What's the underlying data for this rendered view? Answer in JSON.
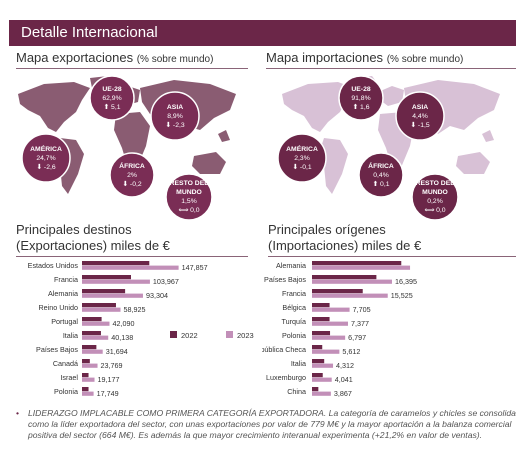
{
  "header": {
    "title": "Detalle Internacional"
  },
  "export_map": {
    "title": "Mapa exportaciones",
    "subtitle": "(% sobre mundo)",
    "bubbles": [
      {
        "region": "UE-28",
        "pct": "62,9%",
        "change": "5,1",
        "dir": "up"
      },
      {
        "region": "ASIA",
        "pct": "8,9%",
        "change": "-2,3",
        "dir": "down"
      },
      {
        "region": "AMÉRICA",
        "pct": "24,7%",
        "change": "-2,6",
        "dir": "down"
      },
      {
        "region": "ÁFRICA",
        "pct": "2%",
        "change": "-0,2",
        "dir": "down"
      },
      {
        "region": "RESTO DEL MUNDO",
        "pct": "1,5%",
        "change": "0,0",
        "dir": "flat"
      }
    ]
  },
  "import_map": {
    "title": "Mapa importaciones",
    "subtitle": "(% sobre mundo)",
    "bubbles": [
      {
        "region": "UE-28",
        "pct": "91,8%",
        "change": "1,6",
        "dir": "up"
      },
      {
        "region": "ASIA",
        "pct": "4,4%",
        "change": "-1,5",
        "dir": "down"
      },
      {
        "region": "AMÉRICA",
        "pct": "2,3%",
        "change": "-0,1",
        "dir": "down"
      },
      {
        "region": "ÁFRICA",
        "pct": "0,4%",
        "change": "0,1",
        "dir": "up"
      },
      {
        "region": "RESTO DEL MUNDO",
        "pct": "0,2%",
        "change": "0,0",
        "dir": "flat"
      }
    ]
  },
  "colors": {
    "header": "#6b2648",
    "export_bubble": "#7a2d55",
    "import_bubble": "#6b2648",
    "bar_2022": "#6b2648",
    "bar_2023": "#c28fb8",
    "export_map_land": "#8a5c72",
    "import_map_land": "#d8c1d6"
  },
  "chart_data": [
    {
      "type": "bar",
      "orientation": "horizontal",
      "title": "Principales destinos",
      "subtitle": "(Exportaciones) miles de €",
      "categories": [
        "Estados Unidos",
        "Francia",
        "Alemania",
        "Reino Unido",
        "Portugal",
        "Italia",
        "Países Bajos",
        "Canadá",
        "Israel",
        "Polonia"
      ],
      "series": [
        {
          "name": "2022",
          "values": [
            103000,
            75000,
            66000,
            52000,
            30000,
            29000,
            22000,
            12000,
            10000,
            10000
          ]
        },
        {
          "name": "2023",
          "values": [
            147857,
            103967,
            93304,
            58925,
            42090,
            40138,
            31694,
            23769,
            19177,
            17749
          ]
        }
      ],
      "value_labels": [
        "147,857",
        "103,967",
        "93,304",
        "58,925",
        "42,090",
        "40,138",
        "31,694",
        "23,769",
        "19,177",
        "17,749"
      ],
      "legend": {
        "labels": [
          "2022",
          "2023"
        ],
        "placement": "right"
      },
      "xlim": [
        0,
        150000
      ]
    },
    {
      "type": "bar",
      "orientation": "horizontal",
      "title": "Principales orígenes",
      "subtitle": "(Importaciones) miles de €",
      "categories": [
        "Alemania",
        "Países Bajos",
        "Francia",
        "Bélgica",
        "Turquía",
        "Polonia",
        "República Checa",
        "Italia",
        "Luxemburgo",
        "China"
      ],
      "series": [
        {
          "name": "2022",
          "values": [
            18300,
            13200,
            10400,
            3600,
            3600,
            3700,
            2100,
            2500,
            2200,
            1300
          ]
        },
        {
          "name": "2023",
          "values": [
            20100,
            16395,
            15525,
            7705,
            7377,
            6797,
            5612,
            4312,
            4041,
            3867
          ]
        }
      ],
      "value_labels": [
        "",
        "16,395",
        "15,525",
        "7,705",
        "7,377",
        "6,797",
        "5,612",
        "4,312",
        "4,041",
        "3,867"
      ],
      "xlim": [
        0,
        20500
      ]
    }
  ],
  "footnote": {
    "bullet": "•",
    "text": "LIDERAZGO IMPLACABLE COMO PRIMERA CATEGORÍA EXPORTADORA. La categoría de caramelos y chicles se consolida como la líder exportadora del sector, con unas exportaciones por valor de 779 M€ y la mayor aportación a la balanza comercial positiva del sector (664 M€). Es además la que mayor crecimiento interanual experimenta (+21,2% en valor de ventas)."
  }
}
